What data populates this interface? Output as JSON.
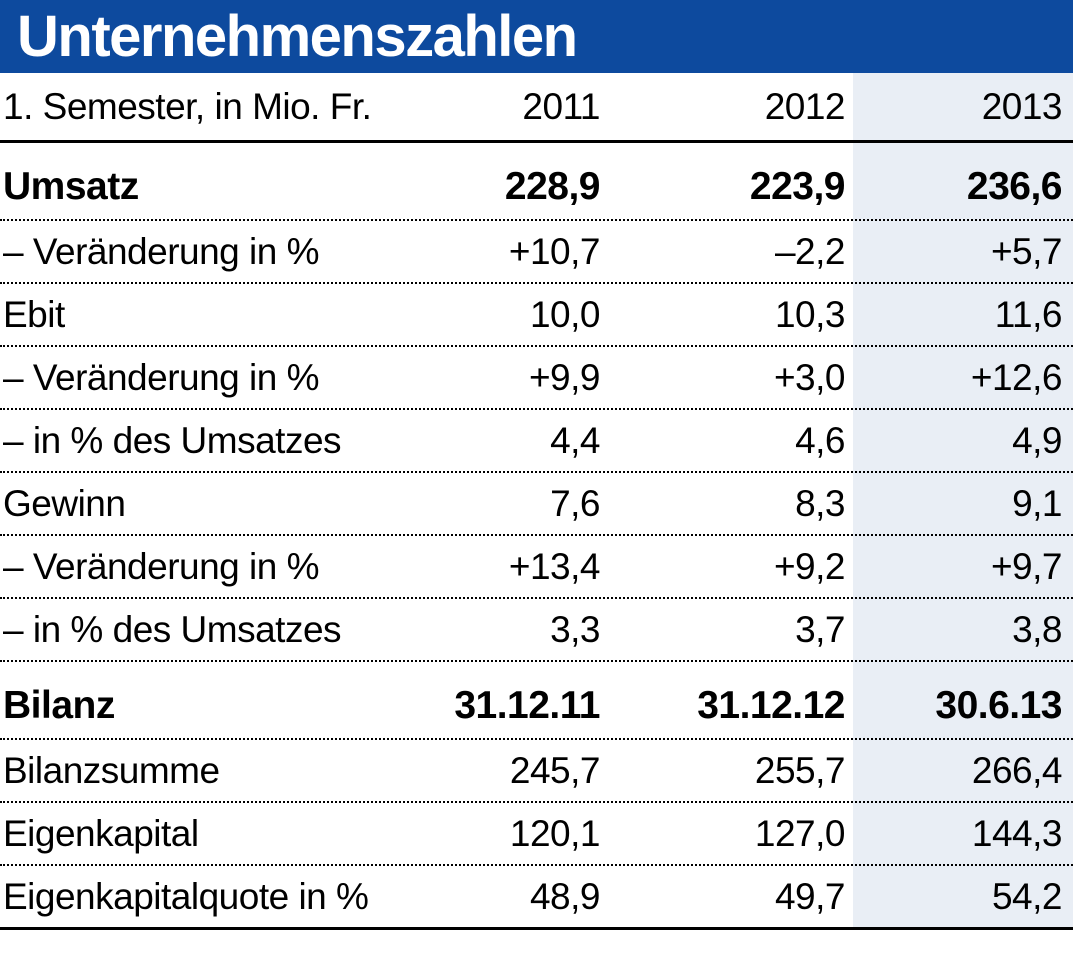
{
  "title": "Unternehmenszahlen",
  "colors": {
    "title_bar_bg": "#0d4a9e",
    "title_text": "#ffffff",
    "highlight_column_bg": "#e9eef5",
    "body_text": "#000000",
    "rule_color": "#000000"
  },
  "table": {
    "header": {
      "label": "1. Semester, in Mio. Fr.",
      "years": [
        "2011",
        "2012",
        "2013"
      ]
    },
    "rows": [
      {
        "label": "Umsatz",
        "values": [
          "228,9",
          "223,9",
          "236,6"
        ],
        "bold": true,
        "section_start": true
      },
      {
        "label": "– Veränderung in %",
        "values": [
          "+10,7",
          "–2,2",
          "+5,7"
        ],
        "bold": false,
        "section_start": false
      },
      {
        "label": "Ebit",
        "values": [
          "10,0",
          "10,3",
          "11,6"
        ],
        "bold": false,
        "section_start": false
      },
      {
        "label": "– Veränderung in %",
        "values": [
          "+9,9",
          "+3,0",
          "+12,6"
        ],
        "bold": false,
        "section_start": false
      },
      {
        "label": "– in % des Umsatzes",
        "values": [
          "4,4",
          "4,6",
          "4,9"
        ],
        "bold": false,
        "section_start": false
      },
      {
        "label": "Gewinn",
        "values": [
          "7,6",
          "8,3",
          "9,1"
        ],
        "bold": false,
        "section_start": false
      },
      {
        "label": "– Veränderung in %",
        "values": [
          "+13,4",
          "+9,2",
          "+9,7"
        ],
        "bold": false,
        "section_start": false
      },
      {
        "label": "– in % des Umsatzes",
        "values": [
          "3,3",
          "3,7",
          "3,8"
        ],
        "bold": false,
        "section_start": false
      },
      {
        "label": "Bilanz",
        "values": [
          "31.12.11",
          "31.12.12",
          "30.6.13"
        ],
        "bold": true,
        "section_start": true
      },
      {
        "label": "Bilanzsumme",
        "values": [
          "245,7",
          "255,7",
          "266,4"
        ],
        "bold": false,
        "section_start": false
      },
      {
        "label": "Eigenkapital",
        "values": [
          "120,1",
          "127,0",
          "144,3"
        ],
        "bold": false,
        "section_start": false
      },
      {
        "label": "Eigenkapitalquote in %",
        "values": [
          "48,9",
          "49,7",
          "54,2"
        ],
        "bold": false,
        "section_start": false
      }
    ]
  },
  "chart_data": {
    "type": "table",
    "title": "Unternehmenszahlen",
    "subtitle": "1. Semester, in Mio. Fr.",
    "columns": [
      "1. Semester, in Mio. Fr.",
      "2011",
      "2012",
      "2013"
    ],
    "rows": [
      [
        "Umsatz",
        "228,9",
        "223,9",
        "236,6"
      ],
      [
        "– Veränderung in %",
        "+10,7",
        "–2,2",
        "+5,7"
      ],
      [
        "Ebit",
        "10,0",
        "10,3",
        "11,6"
      ],
      [
        "– Veränderung in %",
        "+9,9",
        "+3,0",
        "+12,6"
      ],
      [
        "– in % des Umsatzes",
        "4,4",
        "4,6",
        "4,9"
      ],
      [
        "Gewinn",
        "7,6",
        "8,3",
        "9,1"
      ],
      [
        "– Veränderung in %",
        "+13,4",
        "+9,2",
        "+9,7"
      ],
      [
        "– in % des Umsatzes",
        "3,3",
        "3,7",
        "3,8"
      ],
      [
        "Bilanz",
        "31.12.11",
        "31.12.12",
        "30.6.13"
      ],
      [
        "Bilanzsumme",
        "245,7",
        "255,7",
        "266,4"
      ],
      [
        "Eigenkapital",
        "120,1",
        "127,0",
        "144,3"
      ],
      [
        "Eigenkapitalquote in %",
        "48,9",
        "49,7",
        "54,2"
      ]
    ],
    "layout_hints": {
      "highlighted_column": "2013",
      "section_header_rows": [
        "Umsatz",
        "Bilanz"
      ],
      "row_separator": "dotted",
      "header_separator": "solid",
      "bottom_rule": "solid"
    }
  }
}
